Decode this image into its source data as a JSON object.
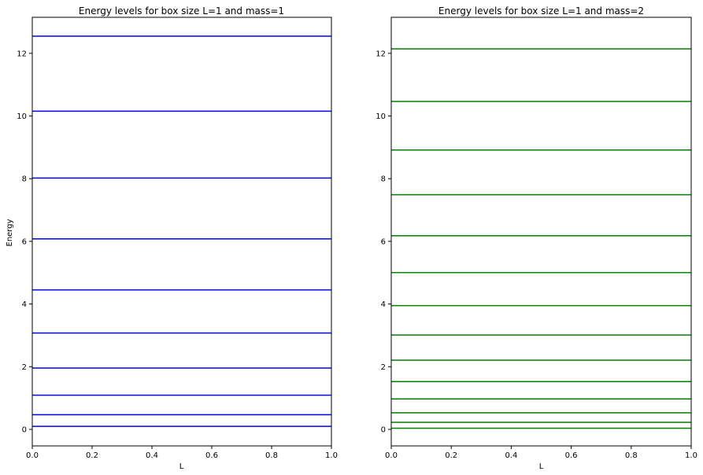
{
  "chart_data": [
    {
      "type": "line",
      "title": "Energy levels for box size L=1 and mass=1",
      "xlabel": "L",
      "ylabel": "Energy",
      "xlim": [
        0,
        1
      ],
      "ylim": [
        -0.5,
        13.1
      ],
      "xticks": [
        "0.0",
        "0.2",
        "0.4",
        "0.6",
        "0.8",
        "1.0"
      ],
      "yticks": [
        "0",
        "2",
        "4",
        "6",
        "8",
        "10",
        "12"
      ],
      "color": "#0000ff",
      "grid": false,
      "levels": [
        0.12,
        0.49,
        1.11,
        1.97,
        3.08,
        4.45,
        6.07,
        8.0,
        10.12,
        12.5
      ]
    },
    {
      "type": "line",
      "title": "Energy levels for box size L=1 and mass=2",
      "xlabel": "L",
      "ylabel": "",
      "xlim": [
        0,
        1
      ],
      "ylim": [
        -0.5,
        13.1
      ],
      "xticks": [
        "0.0",
        "0.2",
        "0.4",
        "0.6",
        "0.8",
        "1.0"
      ],
      "yticks": [
        "0",
        "2",
        "4",
        "6",
        "8",
        "10",
        "12"
      ],
      "color": "#008000",
      "grid": false,
      "levels": [
        0.06,
        0.25,
        0.55,
        0.99,
        1.54,
        2.22,
        3.02,
        3.95,
        5.0,
        6.17,
        7.47,
        8.89,
        10.43,
        12.1
      ]
    }
  ]
}
